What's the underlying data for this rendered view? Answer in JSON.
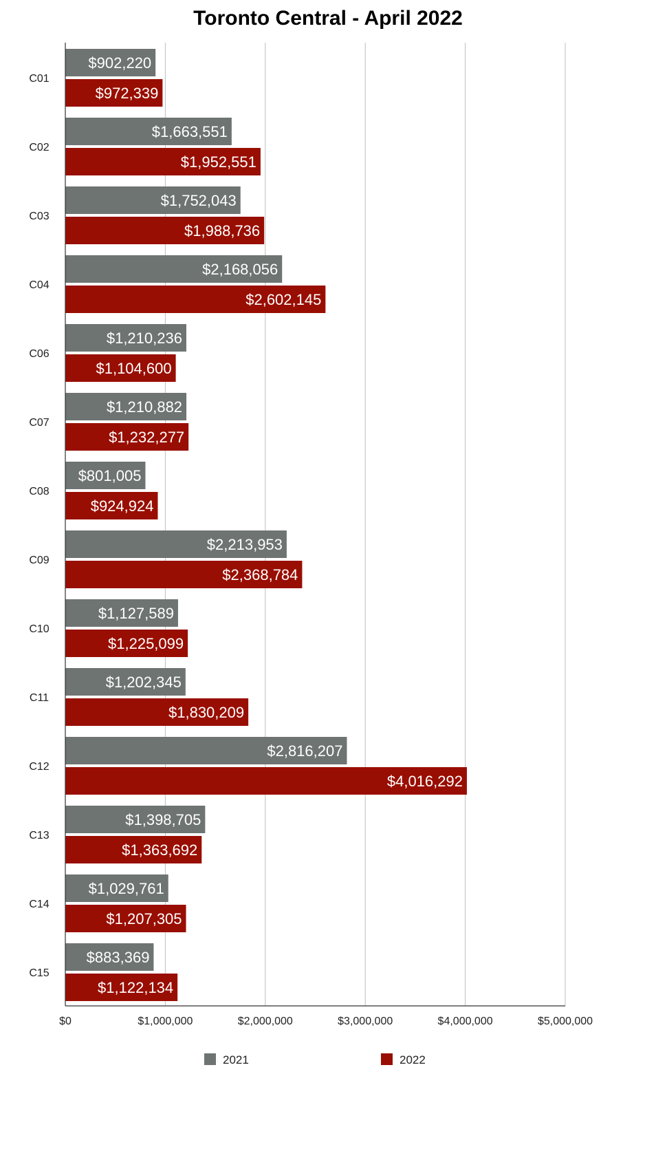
{
  "chart_data": {
    "type": "bar",
    "orientation": "horizontal",
    "title": "Toronto Central - April 2022",
    "xlabel": "",
    "ylabel": "",
    "categories": [
      "C01",
      "C02",
      "C03",
      "C04",
      "C06",
      "C07",
      "C08",
      "C09",
      "C10",
      "C11",
      "C12",
      "C13",
      "C14",
      "C15"
    ],
    "series": [
      {
        "name": "2021",
        "color": "#6e7471",
        "values": [
          902220,
          1663551,
          1752043,
          2168056,
          1210236,
          1210882,
          801005,
          2213953,
          1127589,
          1202345,
          2816207,
          1398705,
          1029761,
          883369
        ],
        "labels": [
          "$902,220",
          "$1,663,551",
          "$1,752,043",
          "$2,168,056",
          "$1,210,236",
          "$1,210,882",
          "$801,005",
          "$2,213,953",
          "$1,127,589",
          "$1,202,345",
          "$2,816,207",
          "$1,398,705",
          "$1,029,761",
          "$883,369"
        ]
      },
      {
        "name": "2022",
        "color": "#990e02",
        "values": [
          972339,
          1952551,
          1988736,
          2602145,
          1104600,
          1232277,
          924924,
          2368784,
          1225099,
          1830209,
          4016292,
          1363692,
          1207305,
          1122134
        ],
        "labels": [
          "$972,339",
          "$1,952,551",
          "$1,988,736",
          "$2,602,145",
          "$1,104,600",
          "$1,232,277",
          "$924,924",
          "$2,368,784",
          "$1,225,099",
          "$1,830,209",
          "$4,016,292",
          "$1,363,692",
          "$1,207,305",
          "$1,122,134"
        ]
      }
    ],
    "xlim": [
      0,
      5000000
    ],
    "x_ticks": [
      0,
      1000000,
      2000000,
      3000000,
      4000000,
      5000000
    ],
    "x_tick_labels": [
      "$0",
      "$1,000,000",
      "$2,000,000",
      "$3,000,000",
      "$4,000,000",
      "$5,000,000"
    ],
    "grid": true,
    "legend_position": "bottom"
  }
}
